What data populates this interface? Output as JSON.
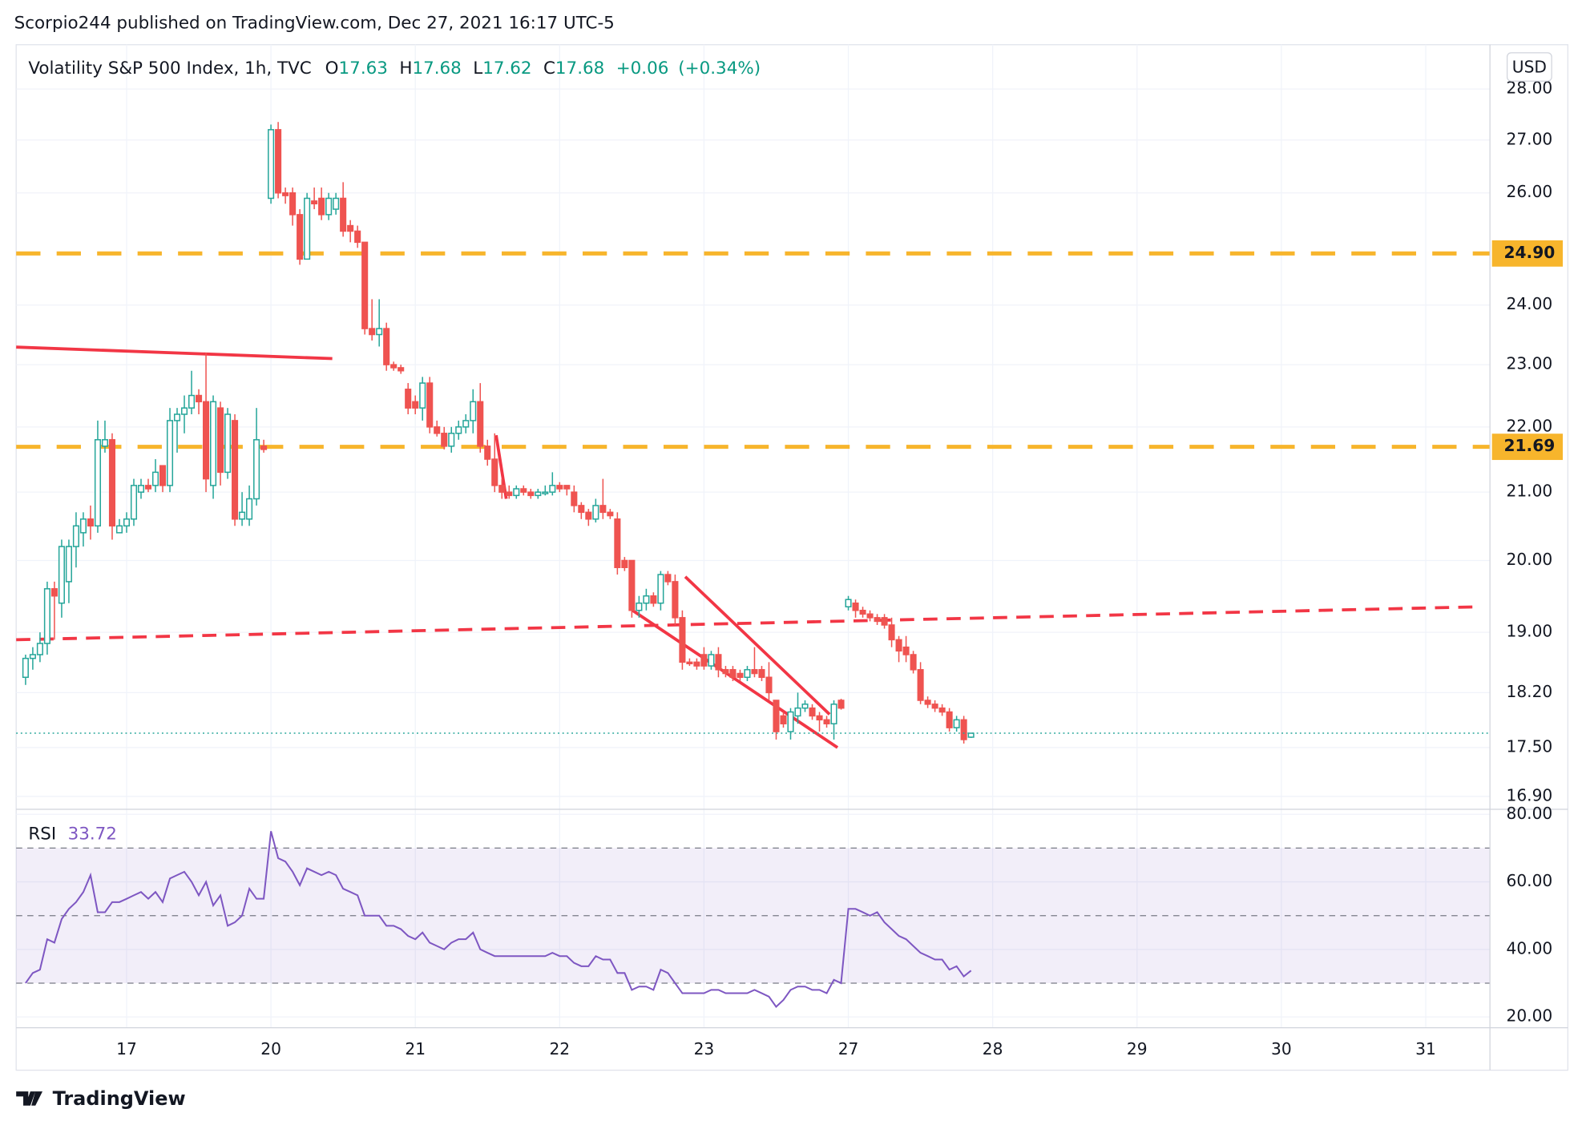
{
  "header": {
    "text": "Scorpio244 published on TradingView.com, Dec 27, 2021 16:17 UTC-5"
  },
  "footer": {
    "brand": "TradingView"
  },
  "chart_data": {
    "type": "candlestick",
    "title": "Volatility S&P 500 Index, 1h, TVC",
    "ohlc_labels": [
      "O",
      "H",
      "L",
      "C"
    ],
    "change": {
      "value": 0.06,
      "label": "+0.06"
    },
    "change_pct": {
      "value": 0.34,
      "label": "(+0.34%)"
    },
    "currency": "USD",
    "log_scale": true,
    "up_color": "#26a69a",
    "down_color": "#ef5350",
    "grid": true,
    "xlim": [
      -15.3,
      188.9
    ],
    "xticks": [
      {
        "value": 0,
        "label": "17"
      },
      {
        "value": 20,
        "label": "20"
      },
      {
        "value": 40,
        "label": "21"
      },
      {
        "value": 60,
        "label": "22"
      },
      {
        "value": 80,
        "label": "23"
      },
      {
        "value": 100,
        "label": "27"
      },
      {
        "value": 120,
        "label": "28"
      },
      {
        "value": 140,
        "label": "29"
      },
      {
        "value": 160,
        "label": "30"
      },
      {
        "value": 180,
        "label": "31"
      }
    ],
    "ylim": [
      16.77,
      28.16
    ],
    "yticks": [
      {
        "value": 28,
        "label": "28.00"
      },
      {
        "value": 27,
        "label": "27.00"
      },
      {
        "value": 26,
        "label": "26.00"
      },
      {
        "value": 24,
        "label": "24.00"
      },
      {
        "value": 23,
        "label": "23.00"
      },
      {
        "value": 22,
        "label": "22.00"
      },
      {
        "value": 21,
        "label": "21.00"
      },
      {
        "value": 20,
        "label": "20.00"
      },
      {
        "value": 19,
        "label": "19.00"
      },
      {
        "value": 18.2,
        "label": "18.20"
      },
      {
        "value": 17.5,
        "label": "17.50"
      },
      {
        "value": 16.9,
        "label": "16.90"
      }
    ],
    "candles": [
      [
        -14,
        18.4,
        18.7,
        18.3,
        18.65
      ],
      [
        -13,
        18.65,
        18.8,
        18.5,
        18.7
      ],
      [
        -12,
        18.7,
        19.0,
        18.6,
        18.85
      ],
      [
        -11,
        18.85,
        19.7,
        18.7,
        19.6
      ],
      [
        -10,
        19.6,
        19.7,
        18.9,
        19.5
      ],
      [
        -9,
        19.4,
        20.3,
        19.2,
        20.2
      ],
      [
        -8,
        19.7,
        20.3,
        19.4,
        20.2
      ],
      [
        -7,
        20.2,
        20.7,
        19.9,
        20.5
      ],
      [
        -6,
        20.4,
        20.7,
        20.2,
        20.6
      ],
      [
        -5,
        20.6,
        20.8,
        20.3,
        20.5
      ],
      [
        -4,
        20.5,
        22.1,
        20.4,
        21.8
      ],
      [
        -3,
        21.7,
        22.1,
        21.6,
        21.8
      ],
      [
        -2,
        21.8,
        21.9,
        20.3,
        20.5
      ],
      [
        -1,
        20.4,
        20.6,
        20.4,
        20.5
      ],
      [
        0,
        20.5,
        20.7,
        20.4,
        20.6
      ],
      [
        1,
        20.6,
        21.2,
        20.5,
        21.1
      ],
      [
        2,
        21.0,
        21.2,
        20.9,
        21.1
      ],
      [
        3,
        21.1,
        21.2,
        21.0,
        21.05
      ],
      [
        4,
        21.1,
        21.5,
        21.0,
        21.3
      ],
      [
        5,
        21.4,
        21.4,
        21.0,
        21.1
      ],
      [
        6,
        21.1,
        22.3,
        21.0,
        22.1
      ],
      [
        7,
        22.1,
        22.3,
        21.6,
        22.2
      ],
      [
        8,
        22.2,
        22.5,
        21.9,
        22.3
      ],
      [
        9,
        22.3,
        22.9,
        22.2,
        22.5
      ],
      [
        10,
        22.5,
        22.6,
        22.2,
        22.4
      ],
      [
        11,
        22.4,
        23.2,
        21.0,
        21.2
      ],
      [
        12,
        21.1,
        22.5,
        20.9,
        22.4
      ],
      [
        13,
        22.3,
        22.4,
        21.1,
        21.3
      ],
      [
        14,
        21.3,
        22.3,
        21.2,
        22.2
      ],
      [
        15,
        22.1,
        22.2,
        20.5,
        20.6
      ],
      [
        16,
        20.6,
        21.0,
        20.5,
        20.7
      ],
      [
        17,
        20.6,
        21.1,
        20.5,
        20.9
      ],
      [
        18,
        20.9,
        22.3,
        20.8,
        21.8
      ],
      [
        19,
        21.7,
        21.8,
        21.6,
        21.65
      ],
      [
        20,
        25.9,
        27.3,
        25.8,
        27.2
      ],
      [
        21,
        27.2,
        27.35,
        25.9,
        26.0
      ],
      [
        22,
        26.0,
        26.1,
        25.8,
        25.95
      ],
      [
        23,
        26.0,
        26.1,
        25.4,
        25.6
      ],
      [
        24,
        25.6,
        25.7,
        24.7,
        24.8
      ],
      [
        25,
        24.8,
        26.0,
        24.8,
        25.9
      ],
      [
        26,
        25.85,
        26.1,
        25.7,
        25.8
      ],
      [
        27,
        25.9,
        26.1,
        25.5,
        25.6
      ],
      [
        28,
        25.6,
        26.0,
        25.5,
        25.9
      ],
      [
        29,
        25.7,
        26.0,
        25.6,
        25.9
      ],
      [
        30,
        25.9,
        26.2,
        25.2,
        25.3
      ],
      [
        31,
        25.4,
        25.5,
        25.1,
        25.3
      ],
      [
        32,
        25.3,
        25.4,
        25.0,
        25.1
      ],
      [
        33,
        25.1,
        25.1,
        23.5,
        23.6
      ],
      [
        34,
        23.6,
        24.1,
        23.4,
        23.5
      ],
      [
        35,
        23.5,
        24.1,
        23.3,
        23.6
      ],
      [
        36,
        23.6,
        23.7,
        22.9,
        23.0
      ],
      [
        37,
        23.0,
        23.05,
        22.9,
        22.95
      ],
      [
        38,
        22.95,
        23.0,
        22.85,
        22.9
      ],
      [
        39,
        22.6,
        22.7,
        22.2,
        22.3
      ],
      [
        40,
        22.4,
        22.5,
        22.2,
        22.3
      ],
      [
        41,
        22.3,
        22.8,
        22.1,
        22.7
      ],
      [
        42,
        22.7,
        22.8,
        21.9,
        22.0
      ],
      [
        43,
        22.0,
        22.1,
        21.85,
        21.9
      ],
      [
        44,
        21.9,
        22.0,
        21.65,
        21.7
      ],
      [
        45,
        21.7,
        22.0,
        21.6,
        21.9
      ],
      [
        46,
        21.9,
        22.1,
        21.8,
        22.0
      ],
      [
        47,
        22.0,
        22.2,
        21.9,
        22.1
      ],
      [
        48,
        22.1,
        22.6,
        21.9,
        22.4
      ],
      [
        49,
        22.4,
        22.7,
        21.6,
        21.7
      ],
      [
        50,
        21.7,
        21.8,
        21.4,
        21.5
      ],
      [
        51,
        21.5,
        21.9,
        21.0,
        21.1
      ],
      [
        52,
        21.1,
        21.2,
        20.9,
        21.0
      ],
      [
        53,
        21.0,
        21.1,
        20.9,
        20.95
      ],
      [
        54,
        20.95,
        21.1,
        20.9,
        21.05
      ],
      [
        55,
        21.05,
        21.1,
        20.95,
        21.0
      ],
      [
        56,
        21.0,
        21.05,
        20.9,
        20.95
      ],
      [
        57,
        20.95,
        21.05,
        20.9,
        21.0
      ],
      [
        58,
        21.0,
        21.1,
        20.95,
        21.0
      ],
      [
        59,
        21.0,
        21.3,
        20.95,
        21.1
      ],
      [
        60,
        21.1,
        21.15,
        21.0,
        21.05
      ],
      [
        61,
        21.1,
        21.1,
        20.95,
        21.05
      ],
      [
        62,
        21.0,
        21.1,
        20.7,
        20.8
      ],
      [
        63,
        20.8,
        20.85,
        20.6,
        20.7
      ],
      [
        64,
        20.7,
        20.75,
        20.5,
        20.6
      ],
      [
        65,
        20.6,
        20.9,
        20.55,
        20.8
      ],
      [
        66,
        20.8,
        21.2,
        20.6,
        20.7
      ],
      [
        67,
        20.7,
        20.75,
        20.6,
        20.65
      ],
      [
        68,
        20.6,
        20.7,
        19.8,
        19.9
      ],
      [
        69,
        20.0,
        20.05,
        19.85,
        19.9
      ],
      [
        70,
        20.0,
        20.0,
        19.2,
        19.3
      ],
      [
        71,
        19.3,
        19.5,
        19.2,
        19.4
      ],
      [
        72,
        19.4,
        19.6,
        19.3,
        19.5
      ],
      [
        73,
        19.5,
        19.55,
        19.35,
        19.4
      ],
      [
        74,
        19.4,
        19.85,
        19.3,
        19.8
      ],
      [
        75,
        19.8,
        19.85,
        19.65,
        19.7
      ],
      [
        76,
        19.7,
        19.8,
        19.1,
        19.2
      ],
      [
        77,
        19.2,
        19.3,
        18.5,
        18.6
      ],
      [
        78,
        18.6,
        18.65,
        18.55,
        18.58
      ],
      [
        79,
        18.6,
        18.65,
        18.5,
        18.55
      ],
      [
        80,
        18.7,
        18.8,
        18.5,
        18.55
      ],
      [
        81,
        18.55,
        18.75,
        18.5,
        18.7
      ],
      [
        82,
        18.7,
        18.8,
        18.4,
        18.5
      ],
      [
        83,
        18.5,
        18.55,
        18.4,
        18.45
      ],
      [
        84,
        18.5,
        18.55,
        18.35,
        18.4
      ],
      [
        85,
        18.45,
        18.5,
        18.35,
        18.4
      ],
      [
        86,
        18.4,
        18.55,
        18.35,
        18.5
      ],
      [
        87,
        18.5,
        18.8,
        18.4,
        18.45
      ],
      [
        88,
        18.5,
        18.55,
        18.35,
        18.4
      ],
      [
        89,
        18.4,
        18.6,
        18.1,
        18.2
      ],
      [
        90,
        18.1,
        18.1,
        17.6,
        17.7
      ],
      [
        91,
        17.9,
        17.95,
        17.75,
        17.8
      ],
      [
        92,
        17.7,
        18.0,
        17.6,
        17.95
      ],
      [
        93,
        17.9,
        18.2,
        17.8,
        18.0
      ],
      [
        94,
        18.0,
        18.1,
        17.95,
        18.05
      ],
      [
        95,
        18.0,
        18.05,
        17.85,
        17.9
      ],
      [
        96,
        17.9,
        17.95,
        17.7,
        17.85
      ],
      [
        97,
        17.85,
        17.9,
        17.75,
        17.8
      ],
      [
        98,
        17.8,
        18.1,
        17.6,
        18.05
      ],
      [
        99,
        18.1,
        18.12,
        17.98,
        18.0
      ],
      [
        100,
        19.35,
        19.5,
        19.3,
        19.45
      ],
      [
        101,
        19.4,
        19.45,
        19.2,
        19.3
      ],
      [
        102,
        19.3,
        19.35,
        19.2,
        19.25
      ],
      [
        103,
        19.25,
        19.3,
        19.15,
        19.2
      ],
      [
        104,
        19.2,
        19.25,
        19.1,
        19.15
      ],
      [
        105,
        19.2,
        19.25,
        19.05,
        19.1
      ],
      [
        106,
        19.1,
        19.2,
        18.8,
        18.9
      ],
      [
        107,
        18.9,
        18.95,
        18.6,
        18.75
      ],
      [
        108,
        18.8,
        18.95,
        18.6,
        18.7
      ],
      [
        109,
        18.7,
        18.75,
        18.45,
        18.5
      ],
      [
        110,
        18.5,
        18.6,
        18.05,
        18.1
      ],
      [
        111,
        18.1,
        18.15,
        18.0,
        18.05
      ],
      [
        112,
        18.05,
        18.1,
        17.95,
        18.0
      ],
      [
        113,
        18.0,
        18.05,
        17.9,
        17.95
      ],
      [
        114,
        17.95,
        18.0,
        17.7,
        17.75
      ],
      [
        115,
        17.75,
        17.9,
        17.7,
        17.85
      ],
      [
        116,
        17.85,
        17.9,
        17.55,
        17.6
      ],
      [
        117,
        17.63,
        17.68,
        17.62,
        17.68
      ]
    ],
    "levels": [
      {
        "value": 24.9,
        "label": "24.90",
        "color": "#f7b52c"
      },
      {
        "value": 21.69,
        "label": "21.69",
        "color": "#f7b52c"
      }
    ],
    "drawings": [
      {
        "color": "#f23645",
        "dashed": false,
        "points": [
          [
            -15.3,
            23.29
          ],
          [
            28.5,
            23.1
          ]
        ]
      },
      {
        "color": "#f23645",
        "dashed": true,
        "points": [
          [
            -15.3,
            18.9
          ],
          [
            187.7,
            19.35
          ]
        ]
      },
      {
        "color": "#f23645",
        "dashed": false,
        "points": [
          [
            70.1,
            19.3
          ],
          [
            98.5,
            17.5
          ]
        ]
      },
      {
        "color": "#f23645",
        "dashed": false,
        "points": [
          [
            77.4,
            19.77
          ],
          [
            97.4,
            17.92
          ]
        ]
      },
      {
        "color": "#f23645",
        "dashed": false,
        "points": [
          [
            51.2,
            21.87
          ],
          [
            52.6,
            20.9
          ]
        ]
      }
    ],
    "last_price_color": "#26a69a",
    "rsi": {
      "name": "RSI",
      "color": "#7e57c2",
      "ylim": [
        16.8,
        81.5
      ],
      "yticks": [
        {
          "value": 80,
          "label": "80.00"
        },
        {
          "value": 60,
          "label": "60.00"
        },
        {
          "value": 40,
          "label": "40.00"
        },
        {
          "value": 20,
          "label": "20.00"
        }
      ],
      "bands": [
        70,
        50,
        30
      ],
      "values": [
        30,
        33,
        34,
        43,
        42,
        49,
        52,
        54,
        57,
        62,
        51,
        51,
        54,
        54,
        55,
        56,
        57,
        55,
        57,
        54,
        61,
        62,
        63,
        60,
        56,
        60,
        53,
        56,
        47,
        48,
        50,
        58,
        55,
        55,
        75,
        67,
        66,
        63,
        59,
        64,
        63,
        62,
        63,
        62,
        58,
        57,
        56,
        50,
        50,
        50,
        47,
        47,
        46,
        44,
        43,
        45,
        42,
        41,
        40,
        42,
        43,
        43,
        45,
        40,
        39,
        38,
        38,
        38,
        38,
        38,
        38,
        38,
        38,
        39,
        38,
        38,
        36,
        35,
        35,
        38,
        37,
        37,
        33,
        33,
        28,
        29,
        29,
        28,
        34,
        33,
        30,
        27,
        27,
        27,
        27,
        28,
        28,
        27,
        27,
        27,
        27,
        28,
        27,
        26,
        23,
        25,
        28,
        29,
        29,
        28,
        28,
        27,
        31,
        30,
        52,
        52,
        51,
        50,
        51,
        48,
        46,
        44,
        43,
        41,
        39,
        38,
        37,
        37,
        34,
        35,
        32,
        33.72
      ]
    }
  }
}
